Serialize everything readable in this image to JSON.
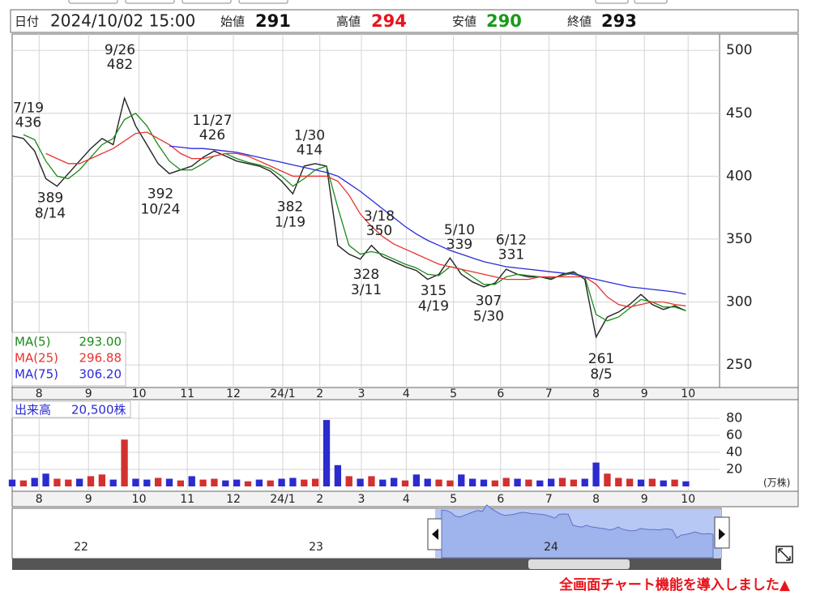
{
  "header": {
    "date_label": "日付",
    "date": "2024/10/02 15:00",
    "fields": [
      {
        "label": "始値",
        "value": 291,
        "color": "#111111"
      },
      {
        "label": "高値",
        "value": 294,
        "color": "#e8141c"
      },
      {
        "label": "安値",
        "value": 290,
        "color": "#1a9a1a"
      },
      {
        "label": "終値",
        "value": 293,
        "color": "#111111"
      }
    ]
  },
  "chart_data": [
    {
      "type": "line",
      "color": "#222222",
      "values": [
        432,
        430,
        420,
        398,
        392,
        402,
        412,
        422,
        430,
        425,
        462,
        440,
        425,
        410,
        402,
        405,
        408,
        415,
        420,
        416,
        412,
        410,
        408,
        404,
        396,
        386,
        408,
        410,
        408,
        345,
        338,
        334,
        345,
        336,
        332,
        328,
        325,
        318,
        322,
        335,
        322,
        316,
        312,
        315,
        326,
        322,
        320,
        320,
        318,
        322,
        324,
        318,
        272,
        288,
        292,
        298,
        306,
        298,
        294,
        297,
        293
      ],
      "series": [
        {
          "name": "MA(5)",
          "color": "#1a8a1a",
          "legend_value": {
            "value": 293,
            "label": "293.00"
          },
          "values": [
            null,
            433,
            429,
            412,
            400,
            398,
            405,
            415,
            425,
            430,
            445,
            450,
            440,
            425,
            412,
            405,
            405,
            410,
            416,
            418,
            414,
            411,
            409,
            406,
            400,
            392,
            398,
            405,
            408,
            375,
            345,
            338,
            340,
            338,
            334,
            330,
            327,
            322,
            321,
            328,
            326,
            320,
            314,
            314,
            320,
            322,
            321,
            320,
            319,
            321,
            323,
            320,
            290,
            285,
            288,
            295,
            302,
            300,
            296,
            296,
            293
          ]
        },
        {
          "name": "MA(25)",
          "color": "#e8322e",
          "legend_value": {
            "value": 296.88,
            "label": "296.88"
          },
          "values": [
            null,
            null,
            null,
            418,
            414,
            410,
            410,
            414,
            418,
            422,
            428,
            434,
            435,
            430,
            425,
            418,
            414,
            414,
            416,
            418,
            418,
            416,
            412,
            408,
            404,
            400,
            400,
            400,
            400,
            396,
            385,
            370,
            360,
            352,
            346,
            342,
            338,
            334,
            330,
            328,
            326,
            324,
            322,
            320,
            318,
            318,
            318,
            320,
            320,
            320,
            320,
            320,
            314,
            304,
            298,
            296,
            298,
            300,
            300,
            298,
            296.88
          ]
        },
        {
          "name": "MA(75)",
          "color": "#2b2bd8",
          "legend_value": {
            "value": 306.2,
            "label": "306.20"
          },
          "values": [
            null,
            null,
            null,
            null,
            null,
            null,
            null,
            null,
            null,
            null,
            null,
            null,
            null,
            null,
            424,
            423,
            422,
            422,
            421,
            420,
            419,
            417,
            415,
            413,
            411,
            409,
            407,
            405,
            403,
            400,
            394,
            388,
            381,
            374,
            367,
            360,
            354,
            349,
            345,
            341,
            338,
            335,
            332,
            330,
            328,
            327,
            326,
            325,
            324,
            323,
            322,
            320,
            318,
            316,
            314,
            312,
            311,
            310,
            309,
            308,
            306.2
          ]
        }
      ],
      "annotations": [
        {
          "date": "7/19",
          "value": 436
        },
        {
          "date": "8/14",
          "value": 389
        },
        {
          "date": "9/26",
          "value": 482
        },
        {
          "date": "10/24",
          "value": 392
        },
        {
          "date": "11/27",
          "value": 426
        },
        {
          "date": "1/19",
          "value": 382
        },
        {
          "date": "1/30",
          "value": 414
        },
        {
          "date": "3/11",
          "value": 328
        },
        {
          "date": "3/18",
          "value": 350
        },
        {
          "date": "4/19",
          "value": 315
        },
        {
          "date": "5/10",
          "value": 339
        },
        {
          "date": "5/30",
          "value": 307
        },
        {
          "date": "6/12",
          "value": 331
        },
        {
          "date": "8/5",
          "value": 261
        }
      ],
      "xlim": [
        0,
        63
      ],
      "xticks": [
        {
          "value": 2.4,
          "label": "8"
        },
        {
          "value": 6.8,
          "label": "9"
        },
        {
          "value": 11.3,
          "label": "10"
        },
        {
          "value": 15.6,
          "label": "11"
        },
        {
          "value": 19.7,
          "label": "12"
        },
        {
          "value": 24.1,
          "label": "24/1"
        },
        {
          "value": 27.4,
          "label": "2"
        },
        {
          "value": 31.1,
          "label": "3"
        },
        {
          "value": 35.1,
          "label": "4"
        },
        {
          "value": 39.3,
          "label": "5"
        },
        {
          "value": 43.5,
          "label": "6"
        },
        {
          "value": 47.8,
          "label": "7"
        },
        {
          "value": 52.0,
          "label": "8"
        },
        {
          "value": 56.3,
          "label": "9"
        },
        {
          "value": 60.2,
          "label": "10"
        }
      ],
      "ylim": [
        232,
        513
      ],
      "yticks": [
        250,
        300,
        350,
        400,
        450,
        500
      ],
      "grid": true
    },
    {
      "type": "bar",
      "title": "出来高",
      "subtitle": "20,500株",
      "unit": "(万株)",
      "values": [
        8,
        7,
        10,
        15,
        9,
        8,
        9,
        12,
        14,
        8,
        55,
        9,
        8,
        10,
        9,
        7,
        12,
        8,
        9,
        7,
        8,
        6,
        8,
        7,
        9,
        10,
        8,
        9,
        78,
        25,
        12,
        9,
        12,
        8,
        10,
        7,
        14,
        9,
        8,
        7,
        14,
        9,
        8,
        7,
        10,
        9,
        8,
        7,
        9,
        10,
        8,
        9,
        28,
        15,
        10,
        9,
        8,
        9,
        7,
        8,
        6
      ],
      "colors": [
        "#2b2bd0",
        "#d33030",
        "#2b2bd0",
        "#2b2bd0",
        "#d33030",
        "#d33030",
        "#2b2bd0",
        "#d33030",
        "#d33030",
        "#2b2bd0",
        "#d33030",
        "#2b2bd0",
        "#2b2bd0",
        "#d33030",
        "#2b2bd0",
        "#d33030",
        "#2b2bd0",
        "#d33030",
        "#d33030",
        "#2b2bd0",
        "#2b2bd0",
        "#d33030",
        "#2b2bd0",
        "#d33030",
        "#2b2bd0",
        "#2b2bd0",
        "#d33030",
        "#d33030",
        "#2b2bd0",
        "#2b2bd0",
        "#d33030",
        "#2b2bd0",
        "#d33030",
        "#2b2bd0",
        "#2b2bd0",
        "#d33030",
        "#2b2bd0",
        "#2b2bd0",
        "#d33030",
        "#d33030",
        "#2b2bd0",
        "#2b2bd0",
        "#2b2bd0",
        "#d33030",
        "#d33030",
        "#2b2bd0",
        "#d33030",
        "#2b2bd0",
        "#2b2bd0",
        "#d33030",
        "#d33030",
        "#2b2bd0",
        "#2b2bd0",
        "#d33030",
        "#d33030",
        "#d33030",
        "#2b2bd0",
        "#d33030",
        "#2b2bd0",
        "#d33030",
        "#2b2bd0"
      ],
      "ylim": [
        0,
        100
      ],
      "yticks": [
        20,
        40,
        60,
        80
      ],
      "grid": true
    }
  ],
  "navigator": {
    "year_labels": [
      "22",
      "23",
      "24"
    ]
  },
  "footer": "全画面チャート機能を導入しました▲"
}
